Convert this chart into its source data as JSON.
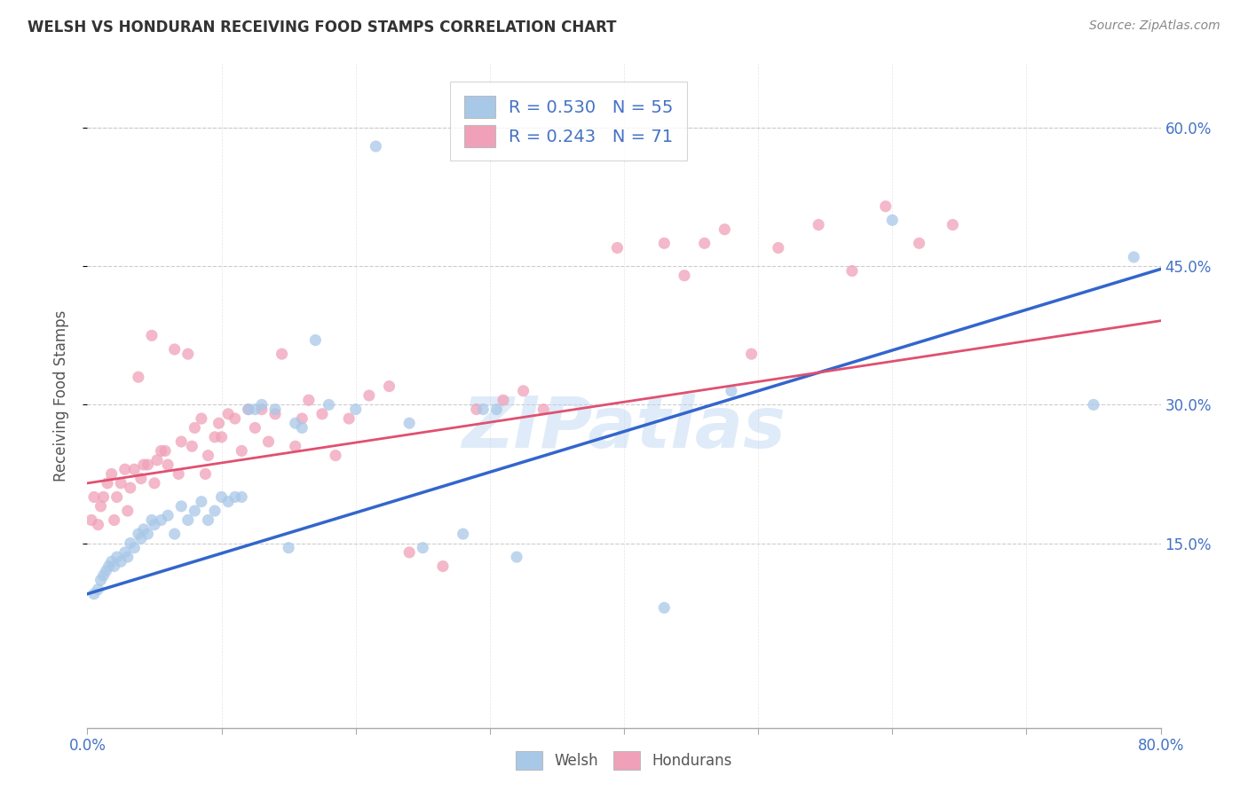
{
  "title": "WELSH VS HONDURAN RECEIVING FOOD STAMPS CORRELATION CHART",
  "source": "Source: ZipAtlas.com",
  "ylabel": "Receiving Food Stamps",
  "watermark": "ZIPatlas",
  "welsh_R": 0.53,
  "welsh_N": 55,
  "honduran_R": 0.243,
  "honduran_N": 71,
  "welsh_color": "#a8c8e8",
  "honduran_color": "#f0a0b8",
  "welsh_line_color": "#3366cc",
  "honduran_line_color": "#e05070",
  "legend_color": "#4472c4",
  "ytick_labels": [
    "15.0%",
    "30.0%",
    "45.0%",
    "60.0%"
  ],
  "ytick_positions": [
    0.15,
    0.3,
    0.45,
    0.6
  ],
  "xlim": [
    0.0,
    0.8
  ],
  "ylim": [
    -0.05,
    0.67
  ],
  "background_color": "#ffffff",
  "grid_color": "#cccccc",
  "welsh_intercept": 0.095,
  "welsh_slope": 0.44,
  "honduran_intercept": 0.215,
  "honduran_slope": 0.22,
  "welsh_points_x": [
    0.005,
    0.008,
    0.01,
    0.012,
    0.014,
    0.016,
    0.018,
    0.02,
    0.022,
    0.025,
    0.028,
    0.03,
    0.032,
    0.035,
    0.038,
    0.04,
    0.042,
    0.045,
    0.048,
    0.05,
    0.055,
    0.06,
    0.065,
    0.07,
    0.075,
    0.08,
    0.085,
    0.09,
    0.095,
    0.1,
    0.105,
    0.11,
    0.115,
    0.12,
    0.125,
    0.13,
    0.14,
    0.15,
    0.155,
    0.16,
    0.17,
    0.18,
    0.2,
    0.215,
    0.24,
    0.25,
    0.28,
    0.295,
    0.305,
    0.32,
    0.43,
    0.48,
    0.6,
    0.75,
    0.78
  ],
  "welsh_points_y": [
    0.095,
    0.1,
    0.11,
    0.115,
    0.12,
    0.125,
    0.13,
    0.125,
    0.135,
    0.13,
    0.14,
    0.135,
    0.15,
    0.145,
    0.16,
    0.155,
    0.165,
    0.16,
    0.175,
    0.17,
    0.175,
    0.18,
    0.16,
    0.19,
    0.175,
    0.185,
    0.195,
    0.175,
    0.185,
    0.2,
    0.195,
    0.2,
    0.2,
    0.295,
    0.295,
    0.3,
    0.295,
    0.145,
    0.28,
    0.275,
    0.37,
    0.3,
    0.295,
    0.58,
    0.28,
    0.145,
    0.16,
    0.295,
    0.295,
    0.135,
    0.08,
    0.315,
    0.5,
    0.3,
    0.46
  ],
  "honduran_points_x": [
    0.003,
    0.005,
    0.008,
    0.01,
    0.012,
    0.015,
    0.018,
    0.02,
    0.022,
    0.025,
    0.028,
    0.03,
    0.032,
    0.035,
    0.038,
    0.04,
    0.042,
    0.045,
    0.048,
    0.05,
    0.052,
    0.055,
    0.058,
    0.06,
    0.065,
    0.068,
    0.07,
    0.075,
    0.078,
    0.08,
    0.085,
    0.088,
    0.09,
    0.095,
    0.098,
    0.1,
    0.105,
    0.11,
    0.115,
    0.12,
    0.125,
    0.13,
    0.135,
    0.14,
    0.145,
    0.155,
    0.16,
    0.165,
    0.175,
    0.185,
    0.195,
    0.21,
    0.225,
    0.24,
    0.265,
    0.29,
    0.31,
    0.325,
    0.34,
    0.395,
    0.43,
    0.445,
    0.46,
    0.475,
    0.495,
    0.515,
    0.545,
    0.57,
    0.595,
    0.62,
    0.645
  ],
  "honduran_points_y": [
    0.175,
    0.2,
    0.17,
    0.19,
    0.2,
    0.215,
    0.225,
    0.175,
    0.2,
    0.215,
    0.23,
    0.185,
    0.21,
    0.23,
    0.33,
    0.22,
    0.235,
    0.235,
    0.375,
    0.215,
    0.24,
    0.25,
    0.25,
    0.235,
    0.36,
    0.225,
    0.26,
    0.355,
    0.255,
    0.275,
    0.285,
    0.225,
    0.245,
    0.265,
    0.28,
    0.265,
    0.29,
    0.285,
    0.25,
    0.295,
    0.275,
    0.295,
    0.26,
    0.29,
    0.355,
    0.255,
    0.285,
    0.305,
    0.29,
    0.245,
    0.285,
    0.31,
    0.32,
    0.14,
    0.125,
    0.295,
    0.305,
    0.315,
    0.295,
    0.47,
    0.475,
    0.44,
    0.475,
    0.49,
    0.355,
    0.47,
    0.495,
    0.445,
    0.515,
    0.475,
    0.495
  ]
}
